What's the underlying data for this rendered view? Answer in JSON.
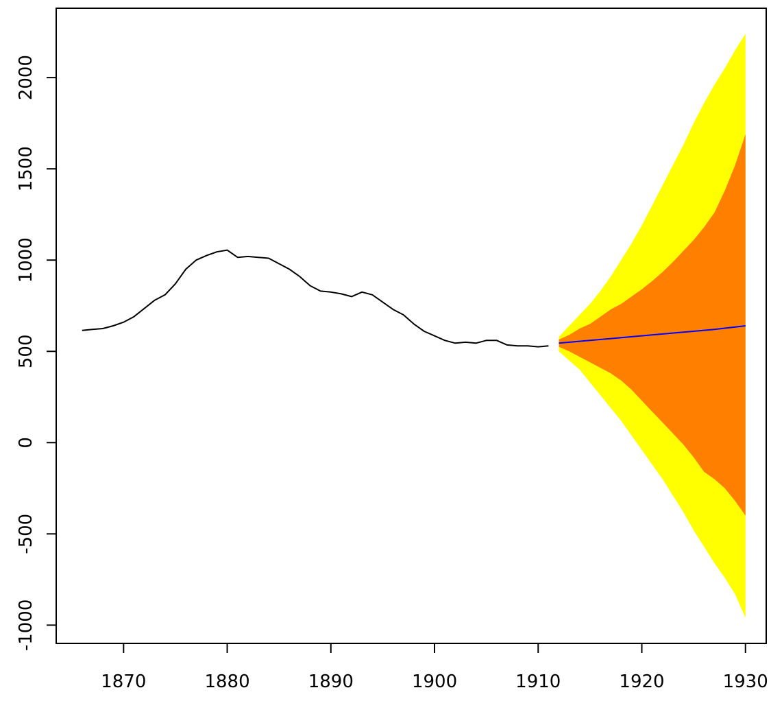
{
  "chart_data": {
    "type": "area",
    "title": "",
    "xlabel": "",
    "ylabel": "",
    "xlim": [
      1863.5,
      1932
    ],
    "ylim": [
      -1100,
      2380
    ],
    "x_ticks": [
      1870,
      1880,
      1890,
      1900,
      1910,
      1920,
      1930
    ],
    "y_ticks": [
      -1000,
      -500,
      0,
      500,
      1000,
      1500,
      2000
    ],
    "x_tick_labels": [
      "1870",
      "1880",
      "1890",
      "1900",
      "1910",
      "1920",
      "1930"
    ],
    "y_tick_labels": [
      "-1000",
      "-500",
      "0",
      "500",
      "1000",
      "1500",
      "2000"
    ],
    "grid": false,
    "legend": "none",
    "colors": {
      "observed": "#000000",
      "forecast_mean": "#0000ff",
      "interval_inner": "#ff8000",
      "interval_outer": "#ffff00",
      "axes": "#000000"
    },
    "series": [
      {
        "kind": "observed",
        "x": [
          1866,
          1867,
          1868,
          1869,
          1870,
          1871,
          1872,
          1873,
          1874,
          1875,
          1876,
          1877,
          1878,
          1879,
          1880,
          1881,
          1882,
          1883,
          1884,
          1885,
          1886,
          1887,
          1888,
          1889,
          1890,
          1891,
          1892,
          1893,
          1894,
          1895,
          1896,
          1897,
          1898,
          1899,
          1900,
          1901,
          1902,
          1903,
          1904,
          1905,
          1906,
          1907,
          1908,
          1909,
          1910,
          1911
        ],
        "y": [
          615,
          620,
          625,
          640,
          660,
          690,
          735,
          780,
          810,
          870,
          950,
          1000,
          1025,
          1045,
          1055,
          1015,
          1020,
          1015,
          1010,
          980,
          950,
          910,
          860,
          830,
          825,
          815,
          800,
          825,
          810,
          770,
          730,
          700,
          650,
          610,
          585,
          560,
          545,
          550,
          545,
          560,
          560,
          535,
          530,
          530,
          525,
          530
        ]
      },
      {
        "kind": "forecast_mean",
        "x": [
          1912,
          1915,
          1918,
          1921,
          1924,
          1927,
          1930
        ],
        "y": [
          545,
          560,
          575,
          590,
          605,
          620,
          640
        ]
      },
      {
        "kind": "interval_inner",
        "x": [
          1912,
          1913,
          1914,
          1915,
          1916,
          1917,
          1918,
          1919,
          1920,
          1921,
          1922,
          1923,
          1924,
          1925,
          1926,
          1927,
          1928,
          1929,
          1930
        ],
        "upper": [
          565,
          590,
          625,
          650,
          690,
          730,
          760,
          800,
          840,
          885,
          935,
          990,
          1050,
          1110,
          1180,
          1260,
          1380,
          1520,
          1690
        ],
        "lower": [
          525,
          500,
          470,
          440,
          410,
          380,
          340,
          290,
          230,
          170,
          110,
          50,
          -10,
          -80,
          -160,
          -200,
          -250,
          -320,
          -400
        ]
      },
      {
        "kind": "interval_outer",
        "x": [
          1912,
          1913,
          1914,
          1915,
          1916,
          1917,
          1918,
          1919,
          1920,
          1921,
          1922,
          1923,
          1924,
          1925,
          1926,
          1927,
          1928,
          1929,
          1930
        ],
        "upper": [
          580,
          640,
          700,
          760,
          830,
          910,
          1000,
          1090,
          1190,
          1300,
          1410,
          1520,
          1630,
          1750,
          1860,
          1960,
          2050,
          2150,
          2240
        ],
        "lower": [
          500,
          450,
          400,
          330,
          260,
          190,
          120,
          40,
          -40,
          -120,
          -200,
          -290,
          -380,
          -480,
          -570,
          -660,
          -740,
          -830,
          -960
        ]
      }
    ]
  }
}
